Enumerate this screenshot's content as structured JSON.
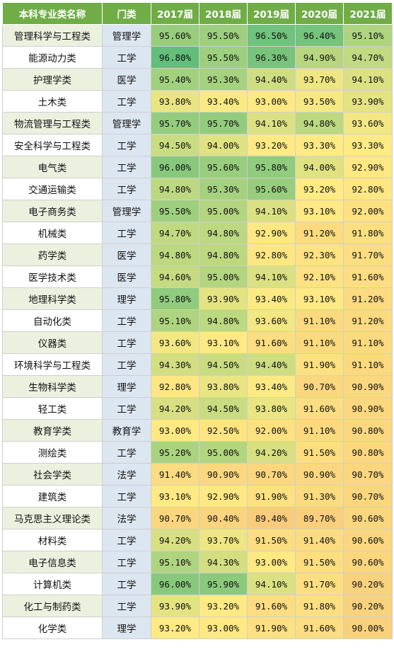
{
  "table": {
    "headers": [
      "本科专业类名称",
      "门类",
      "2017届",
      "2018届",
      "2019届",
      "2020届",
      "2021届"
    ],
    "rows": [
      {
        "major": "管理科学与工程类",
        "category": "管理学",
        "values": [
          "95.60%",
          "95.50%",
          "96.50%",
          "96.40%",
          "95.10%"
        ]
      },
      {
        "major": "能源动力类",
        "category": "工学",
        "values": [
          "96.80%",
          "95.50%",
          "96.30%",
          "94.90%",
          "94.70%"
        ]
      },
      {
        "major": "护理学类",
        "category": "医学",
        "values": [
          "95.40%",
          "95.30%",
          "94.40%",
          "93.70%",
          "94.10%"
        ]
      },
      {
        "major": "土木类",
        "category": "工学",
        "values": [
          "93.80%",
          "93.40%",
          "93.00%",
          "93.50%",
          "93.90%"
        ]
      },
      {
        "major": "物流管理与工程类",
        "category": "管理学",
        "values": [
          "95.70%",
          "95.70%",
          "94.10%",
          "94.80%",
          "93.60%"
        ]
      },
      {
        "major": "安全科学与工程类",
        "category": "工学",
        "values": [
          "94.50%",
          "94.00%",
          "93.20%",
          "93.30%",
          "93.30%"
        ]
      },
      {
        "major": "电气类",
        "category": "工学",
        "values": [
          "96.00%",
          "95.60%",
          "95.80%",
          "94.00%",
          "92.90%"
        ]
      },
      {
        "major": "交通运输类",
        "category": "工学",
        "values": [
          "94.80%",
          "95.30%",
          "95.60%",
          "93.20%",
          "92.80%"
        ]
      },
      {
        "major": "电子商务类",
        "category": "管理学",
        "values": [
          "95.50%",
          "95.00%",
          "94.10%",
          "93.10%",
          "92.00%"
        ]
      },
      {
        "major": "机械类",
        "category": "工学",
        "values": [
          "94.70%",
          "94.80%",
          "92.90%",
          "91.20%",
          "91.80%"
        ]
      },
      {
        "major": "药学类",
        "category": "医学",
        "values": [
          "94.80%",
          "94.80%",
          "92.80%",
          "92.30%",
          "91.70%"
        ]
      },
      {
        "major": "医学技术类",
        "category": "医学",
        "values": [
          "94.60%",
          "95.00%",
          "94.10%",
          "92.10%",
          "91.60%"
        ]
      },
      {
        "major": "地理科学类",
        "category": "理学",
        "values": [
          "95.80%",
          "93.90%",
          "93.40%",
          "93.10%",
          "91.20%"
        ]
      },
      {
        "major": "自动化类",
        "category": "工学",
        "values": [
          "95.10%",
          "94.80%",
          "93.60%",
          "91.10%",
          "91.20%"
        ]
      },
      {
        "major": "仪器类",
        "category": "工学",
        "values": [
          "93.60%",
          "93.10%",
          "91.60%",
          "91.10%",
          "91.10%"
        ]
      },
      {
        "major": "环境科学与工程类",
        "category": "工学",
        "values": [
          "94.30%",
          "94.50%",
          "94.40%",
          "91.90%",
          "91.10%"
        ]
      },
      {
        "major": "生物科学类",
        "category": "理学",
        "values": [
          "92.80%",
          "93.80%",
          "93.40%",
          "90.70%",
          "90.90%"
        ]
      },
      {
        "major": "轻工类",
        "category": "工学",
        "values": [
          "94.20%",
          "94.50%",
          "93.80%",
          "91.60%",
          "90.90%"
        ]
      },
      {
        "major": "教育学类",
        "category": "教育学",
        "values": [
          "93.00%",
          "92.50%",
          "92.00%",
          "91.10%",
          "90.80%"
        ]
      },
      {
        "major": "测绘类",
        "category": "工学",
        "values": [
          "95.20%",
          "95.00%",
          "94.20%",
          "91.50%",
          "90.80%"
        ]
      },
      {
        "major": "社会学类",
        "category": "法学",
        "values": [
          "91.40%",
          "90.90%",
          "90.70%",
          "90.90%",
          "90.70%"
        ]
      },
      {
        "major": "建筑类",
        "category": "工学",
        "values": [
          "93.10%",
          "92.90%",
          "91.90%",
          "91.30%",
          "90.70%"
        ]
      },
      {
        "major": "马克思主义理论类",
        "category": "法学",
        "values": [
          "90.70%",
          "90.40%",
          "89.40%",
          "89.70%",
          "90.60%"
        ]
      },
      {
        "major": "材料类",
        "category": "工学",
        "values": [
          "94.20%",
          "93.70%",
          "91.50%",
          "91.40%",
          "90.60%"
        ]
      },
      {
        "major": "电子信息类",
        "category": "工学",
        "values": [
          "95.10%",
          "94.30%",
          "93.00%",
          "91.50%",
          "90.60%"
        ]
      },
      {
        "major": "计算机类",
        "category": "工学",
        "values": [
          "96.00%",
          "95.90%",
          "94.10%",
          "91.70%",
          "90.20%"
        ]
      },
      {
        "major": "化工与制药类",
        "category": "工学",
        "values": [
          "93.90%",
          "93.20%",
          "91.60%",
          "91.80%",
          "90.20%"
        ]
      },
      {
        "major": "化学类",
        "category": "理学",
        "values": [
          "93.20%",
          "93.00%",
          "91.90%",
          "91.60%",
          "90.00%"
        ]
      }
    ]
  },
  "colors": {
    "header_bg": "#70ad47",
    "scale_low": "#f8cc7c",
    "scale_mid": "#ffeb84",
    "scale_high": "#63be7b",
    "category_bg": "#dce6f1",
    "band_bg": "#ebf1de"
  }
}
